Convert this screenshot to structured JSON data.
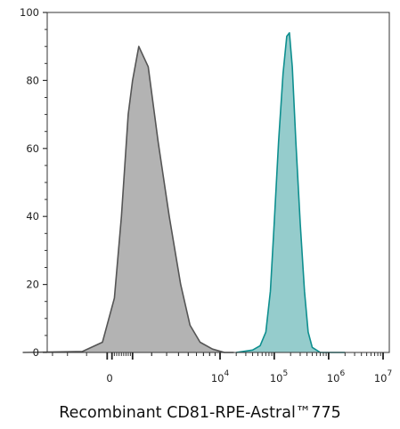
{
  "chart_data": {
    "type": "area",
    "title": "",
    "xlabel": "Recombinant CD81-RPE-Astral™775",
    "ylabel": "",
    "x_scale": "biexponential",
    "x_tick_labels": [
      {
        "base": "0",
        "exp": ""
      },
      {
        "base": "10",
        "exp": "4"
      },
      {
        "base": "10",
        "exp": "5"
      },
      {
        "base": "10",
        "exp": "6"
      },
      {
        "base": "10",
        "exp": "7"
      }
    ],
    "y_ticks": [
      0,
      20,
      40,
      60,
      80,
      100
    ],
    "ylim": [
      0,
      100
    ],
    "grid": false,
    "series": [
      {
        "color": "#555555",
        "fill": "#b3b3b3",
        "points": [
          [
            -6000,
            0
          ],
          [
            -1200,
            0.3
          ],
          [
            -300,
            3
          ],
          [
            200,
            16
          ],
          [
            500,
            40
          ],
          [
            800,
            70
          ],
          [
            1000,
            80
          ],
          [
            1300,
            90
          ],
          [
            1800,
            84
          ],
          [
            2400,
            62
          ],
          [
            3200,
            40
          ],
          [
            4200,
            20
          ],
          [
            5200,
            8
          ],
          [
            6500,
            3
          ],
          [
            8500,
            1
          ],
          [
            12000,
            0
          ],
          [
            18000,
            0
          ]
        ]
      },
      {
        "color": "#0e8f8f",
        "fill": "#95cccc",
        "points": [
          [
            20000,
            0
          ],
          [
            40000,
            0.7
          ],
          [
            55000,
            2
          ],
          [
            70000,
            6
          ],
          [
            85000,
            18
          ],
          [
            100000,
            38
          ],
          [
            120000,
            62
          ],
          [
            145000,
            82
          ],
          [
            170000,
            93
          ],
          [
            190000,
            94
          ],
          [
            215000,
            84
          ],
          [
            250000,
            62
          ],
          [
            300000,
            38
          ],
          [
            360000,
            18
          ],
          [
            420000,
            6
          ],
          [
            500000,
            1.5
          ],
          [
            700000,
            0
          ],
          [
            2000000,
            0
          ]
        ]
      }
    ]
  }
}
